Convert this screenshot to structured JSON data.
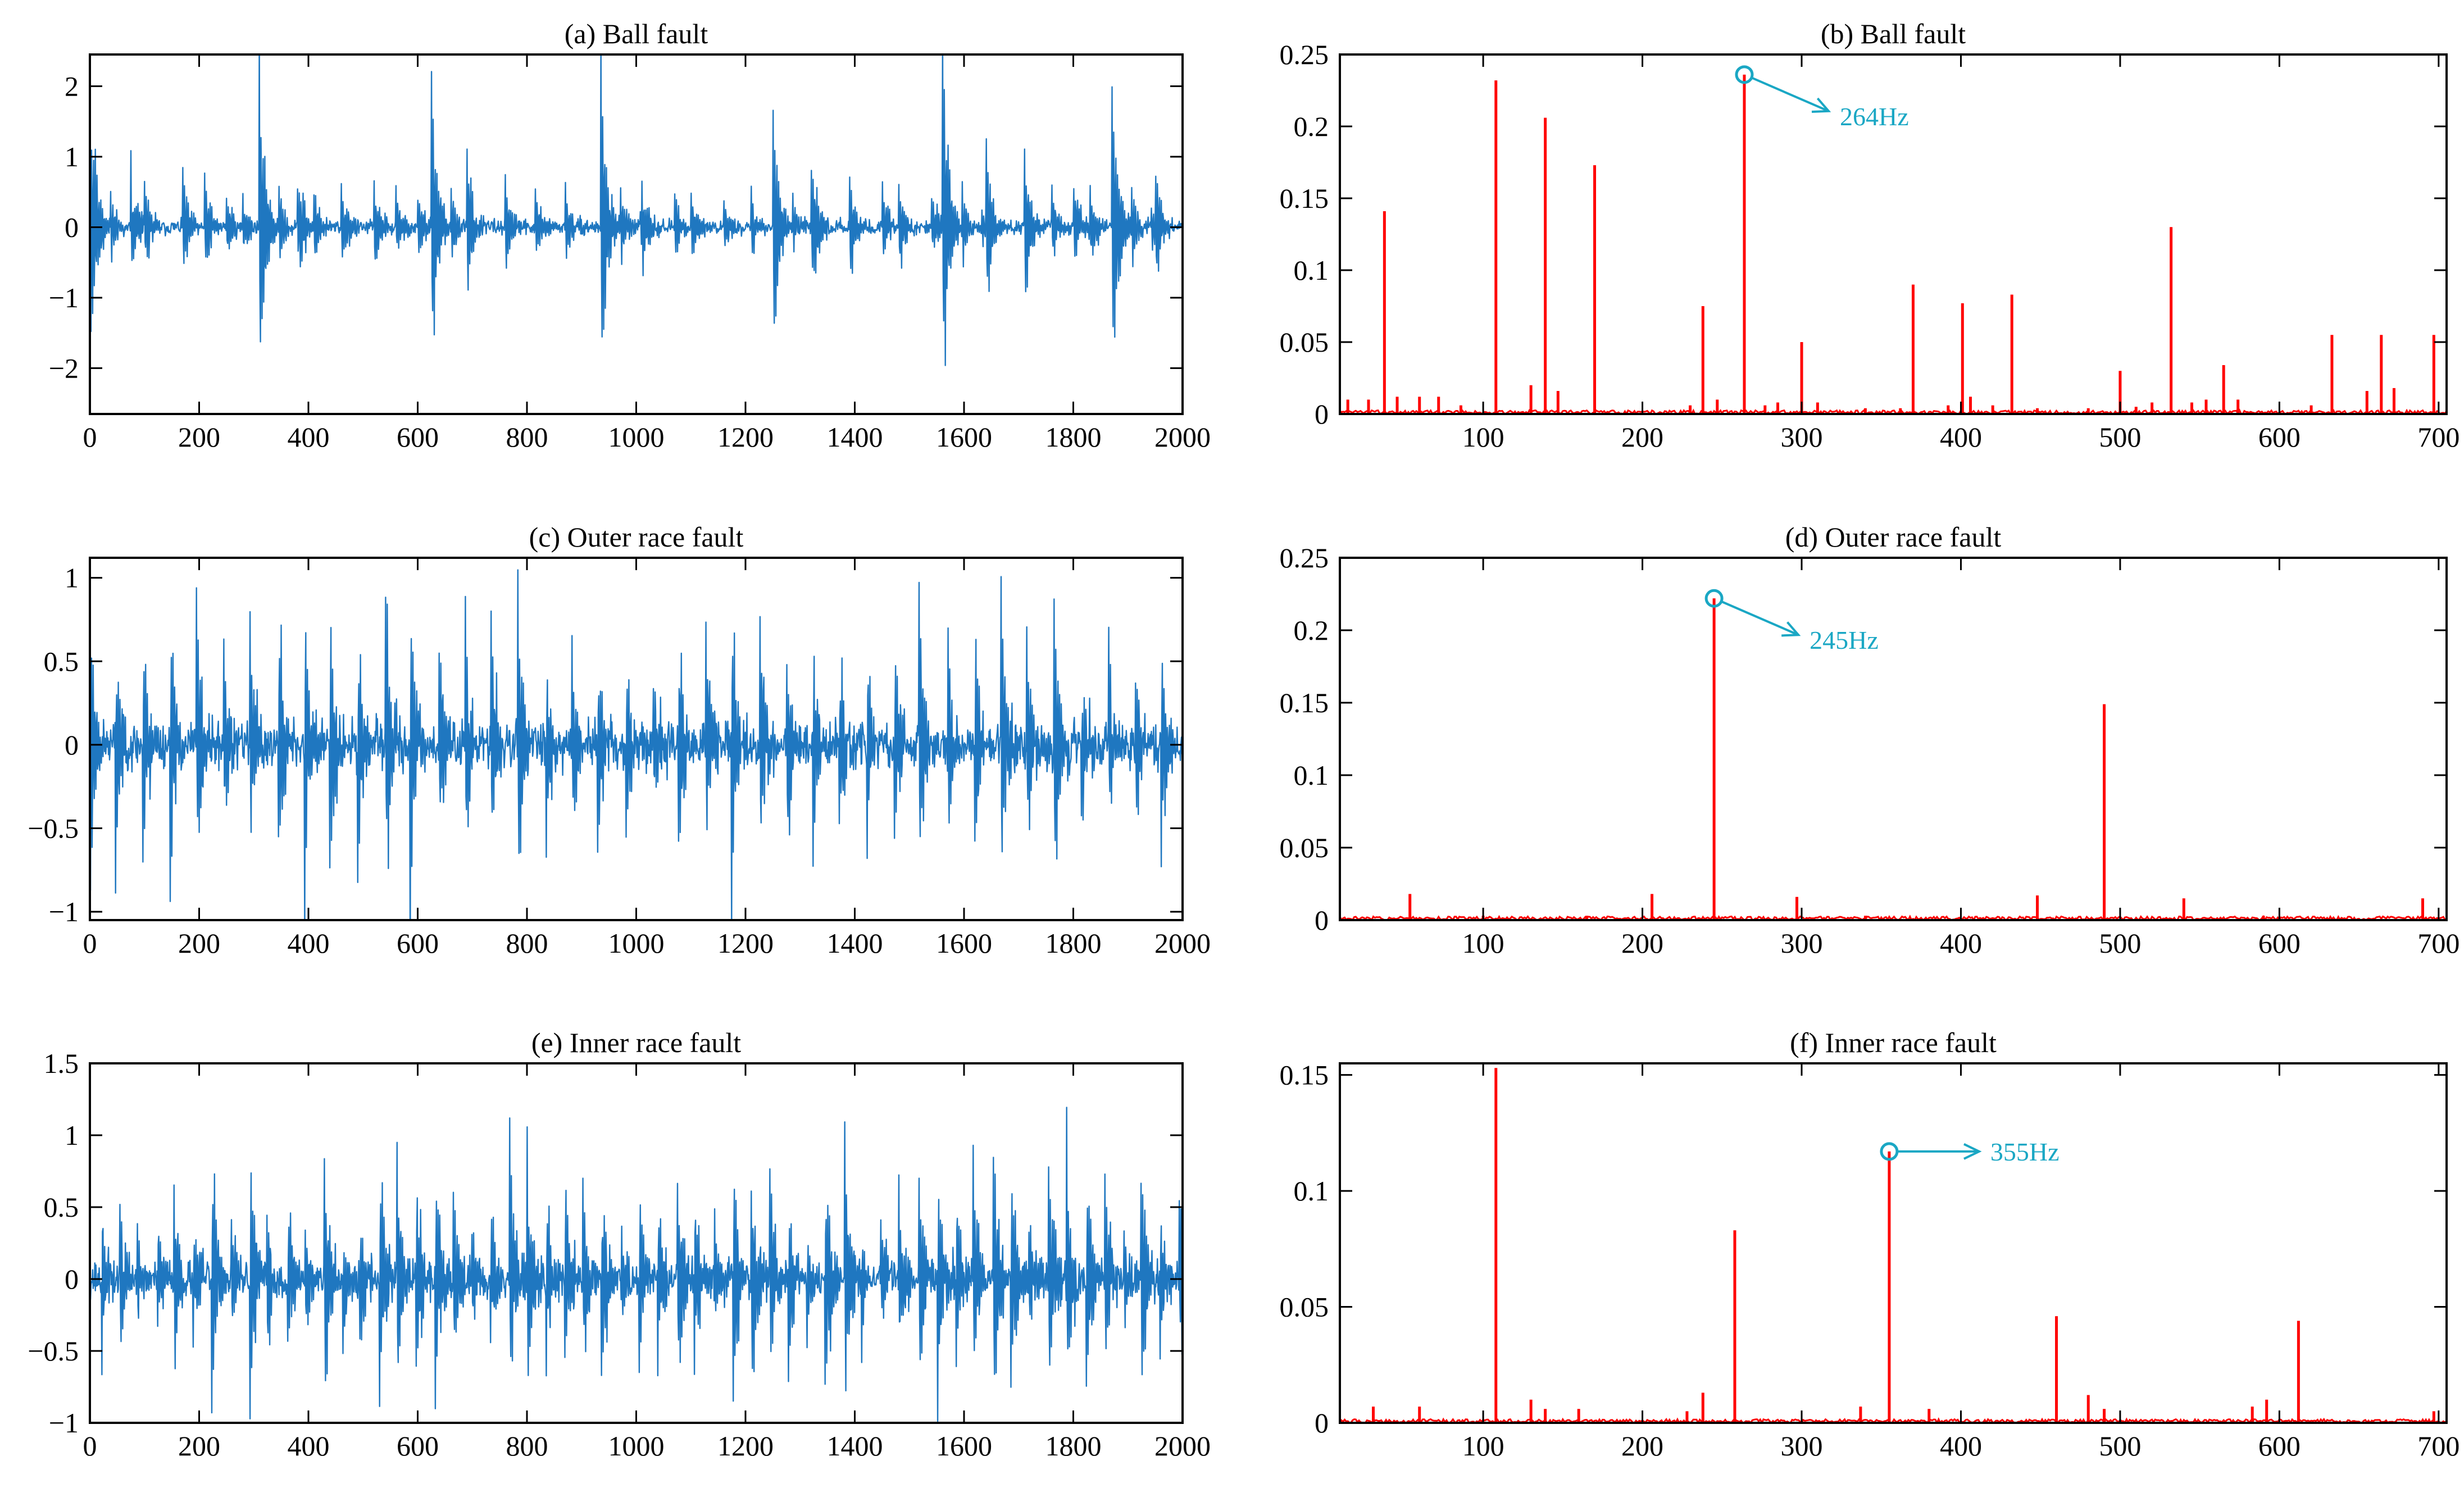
{
  "figure": {
    "colors": {
      "time": "#1f77c0",
      "spectrum": "#ff0000",
      "annotation": "#1aa7c4",
      "axes": "#000000"
    }
  },
  "chart_data": [
    {
      "id": "a",
      "type": "line",
      "title": "(a) Ball fault",
      "xlabel": "",
      "ylabel": "",
      "xlim": [
        0,
        2000
      ],
      "ylim": [
        -2.65,
        2.45
      ],
      "xticks": [
        0,
        200,
        400,
        600,
        800,
        1000,
        1200,
        1400,
        1600,
        1800,
        2000
      ],
      "xtick_labels": [
        "0",
        "200",
        "400",
        "600",
        "800",
        "1000",
        "1200",
        "1400",
        "1600",
        "1800",
        "2000"
      ],
      "yticks": [
        -2,
        -1,
        0,
        1,
        2
      ],
      "ytick_labels": [
        "−2",
        "−1",
        "0",
        "1",
        "2"
      ],
      "signal": {
        "samples": 2000,
        "noise": 0.07,
        "decay": 11,
        "seed": 11,
        "impulses": [
          {
            "x": 0,
            "amp": 2.3,
            "period": 38
          },
          {
            "x": 310,
            "amp": 2.3,
            "period": 36
          },
          {
            "x": 625,
            "amp": 2.15,
            "period": 36
          },
          {
            "x": 935,
            "amp": 2.3,
            "period": 36
          },
          {
            "x": 1250,
            "amp": 1.75,
            "period": 36
          },
          {
            "x": 1560,
            "amp": 2.45,
            "period": 36
          },
          {
            "x": 1870,
            "amp": 2.45,
            "period": 36
          },
          {
            "x": 75,
            "amp": 0.85
          },
          {
            "x": 100,
            "amp": 0.75
          },
          {
            "x": 170,
            "amp": 0.8
          },
          {
            "x": 210,
            "amp": 0.7
          },
          {
            "x": 250,
            "amp": 0.45
          },
          {
            "x": 280,
            "amp": 0.45
          },
          {
            "x": 380,
            "amp": 0.85
          },
          {
            "x": 410,
            "amp": 0.55
          },
          {
            "x": 460,
            "amp": 0.65
          },
          {
            "x": 520,
            "amp": 0.65
          },
          {
            "x": 560,
            "amp": 0.45
          },
          {
            "x": 600,
            "amp": 0.5
          },
          {
            "x": 690,
            "amp": 1.05
          },
          {
            "x": 760,
            "amp": 0.6
          },
          {
            "x": 815,
            "amp": 0.5
          },
          {
            "x": 870,
            "amp": 0.5
          },
          {
            "x": 1010,
            "amp": 0.75
          },
          {
            "x": 1070,
            "amp": 0.5
          },
          {
            "x": 1100,
            "amp": 0.6
          },
          {
            "x": 1160,
            "amp": 0.5
          },
          {
            "x": 1210,
            "amp": 0.45
          },
          {
            "x": 1320,
            "amp": 1.05
          },
          {
            "x": 1390,
            "amp": 0.75
          },
          {
            "x": 1450,
            "amp": 0.55
          },
          {
            "x": 1480,
            "amp": 0.65
          },
          {
            "x": 1540,
            "amp": 0.5
          },
          {
            "x": 1640,
            "amp": 1.05
          },
          {
            "x": 1710,
            "amp": 1.05
          },
          {
            "x": 1760,
            "amp": 0.55
          },
          {
            "x": 1800,
            "amp": 0.65
          },
          {
            "x": 1830,
            "amp": 0.5
          },
          {
            "x": 1950,
            "amp": 0.85
          }
        ]
      }
    },
    {
      "id": "b",
      "type": "line",
      "title": "(b) Ball fault",
      "xlabel": "",
      "ylabel": "",
      "xlim": [
        10,
        705
      ],
      "ylim": [
        0,
        0.25
      ],
      "xticks": [
        100,
        200,
        300,
        400,
        500,
        600,
        700
      ],
      "xtick_labels": [
        "100",
        "200",
        "300",
        "400",
        "500",
        "600",
        "700"
      ],
      "yticks": [
        0,
        0.05,
        0.1,
        0.15,
        0.2,
        0.25
      ],
      "ytick_labels": [
        "0",
        "0.05",
        "0.1",
        "0.15",
        "0.2",
        "0.25"
      ],
      "peaks": {
        "freq": [
          15,
          28,
          38,
          46,
          60,
          72,
          86,
          108,
          130,
          139,
          147,
          170,
          230,
          238,
          247,
          264,
          277,
          285,
          300,
          310,
          340,
          362,
          370,
          392,
          401,
          406,
          420,
          432,
          448,
          480,
          500,
          510,
          520,
          532,
          545,
          554,
          565,
          574,
          620,
          633,
          655,
          664,
          672,
          697
        ],
        "amp": [
          0.01,
          0.01,
          0.141,
          0.012,
          0.012,
          0.012,
          0.006,
          0.232,
          0.02,
          0.206,
          0.016,
          0.173,
          0.006,
          0.075,
          0.01,
          0.236,
          0.006,
          0.008,
          0.05,
          0.008,
          0.004,
          0.004,
          0.09,
          0.006,
          0.077,
          0.012,
          0.006,
          0.083,
          0.004,
          0.004,
          0.03,
          0.005,
          0.008,
          0.13,
          0.008,
          0.01,
          0.034,
          0.01,
          0.006,
          0.055,
          0.016,
          0.055,
          0.018,
          0.055
        ]
      },
      "annotation": {
        "text": "264Hz",
        "x": 264,
        "y": 0.236
      }
    },
    {
      "id": "c",
      "type": "line",
      "title": "(c) Outer race fault",
      "xlabel": "",
      "ylabel": "",
      "xlim": [
        0,
        2000
      ],
      "ylim": [
        -1.05,
        1.12
      ],
      "xticks": [
        0,
        200,
        400,
        600,
        800,
        1000,
        1200,
        1400,
        1600,
        1800,
        2000
      ],
      "xtick_labels": [
        "0",
        "200",
        "400",
        "600",
        "800",
        "1000",
        "1200",
        "1400",
        "1600",
        "1800",
        "2000"
      ],
      "yticks": [
        -1,
        -0.5,
        0,
        0.5,
        1
      ],
      "ytick_labels": [
        "−1",
        "−0.5",
        "0",
        "0.5",
        "1"
      ],
      "signal": {
        "samples": 2000,
        "noise": 0.1,
        "decay": 9,
        "seed": 23,
        "periodic": {
          "start": 0,
          "period": 49,
          "amp_min": 0.55,
          "amp_max": 1.05
        }
      }
    },
    {
      "id": "d",
      "type": "line",
      "title": "(d) Outer race fault",
      "xlabel": "",
      "ylabel": "",
      "xlim": [
        10,
        705
      ],
      "ylim": [
        0,
        0.25
      ],
      "xticks": [
        100,
        200,
        300,
        400,
        500,
        600,
        700
      ],
      "xtick_labels": [
        "100",
        "200",
        "300",
        "400",
        "500",
        "600",
        "700"
      ],
      "yticks": [
        0,
        0.05,
        0.1,
        0.15,
        0.2,
        0.25
      ],
      "ytick_labels": [
        "0",
        "0.05",
        "0.1",
        "0.15",
        "0.2",
        "0.25"
      ],
      "peaks": {
        "freq": [
          54,
          100,
          165,
          206,
          245,
          297,
          340,
          448,
          490,
          540,
          590,
          690
        ],
        "amp": [
          0.018,
          0.003,
          0.003,
          0.018,
          0.222,
          0.016,
          0.003,
          0.017,
          0.149,
          0.015,
          0.003,
          0.015
        ]
      },
      "annotation": {
        "text": "245Hz",
        "x": 245,
        "y": 0.222
      }
    },
    {
      "id": "e",
      "type": "line",
      "title": "(e) Inner race fault",
      "xlabel": "",
      "ylabel": "",
      "xlim": [
        0,
        2000
      ],
      "ylim": [
        -1,
        1.5
      ],
      "xticks": [
        0,
        200,
        400,
        600,
        800,
        1000,
        1200,
        1400,
        1600,
        1800,
        2000
      ],
      "xtick_labels": [
        "0",
        "200",
        "400",
        "600",
        "800",
        "1000",
        "1200",
        "1400",
        "1600",
        "1800",
        "2000"
      ],
      "yticks": [
        -1,
        -0.5,
        0,
        0.5,
        1,
        1.5
      ],
      "ytick_labels": [
        "−1",
        "−0.5",
        "0",
        "0.5",
        "1",
        "1.5"
      ],
      "signal": {
        "samples": 2000,
        "noise": 0.09,
        "decay": 10,
        "seed": 37,
        "periodic": {
          "start": 20,
          "period": 34,
          "amp_min": 0.35,
          "amp_max": 0.95
        }
      }
    },
    {
      "id": "f",
      "type": "line",
      "title": "(f) Inner race fault",
      "xlabel": "",
      "ylabel": "",
      "xlim": [
        10,
        705
      ],
      "ylim": [
        0,
        0.155
      ],
      "xticks": [
        100,
        200,
        300,
        400,
        500,
        600,
        700
      ],
      "xtick_labels": [
        "100",
        "200",
        "300",
        "400",
        "500",
        "600",
        "700"
      ],
      "yticks": [
        0,
        0.05,
        0.1,
        0.15
      ],
      "ytick_labels": [
        "0",
        "0.05",
        "0.1",
        "0.15"
      ],
      "peaks": {
        "freq": [
          31,
          60,
          108,
          130,
          139,
          160,
          228,
          238,
          258,
          337,
          355,
          380,
          460,
          480,
          490,
          583,
          592,
          612,
          697
        ],
        "amp": [
          0.007,
          0.007,
          0.153,
          0.01,
          0.006,
          0.006,
          0.005,
          0.013,
          0.083,
          0.007,
          0.117,
          0.006,
          0.046,
          0.012,
          0.006,
          0.007,
          0.01,
          0.044,
          0.005
        ]
      },
      "annotation": {
        "text": "355Hz",
        "x": 355,
        "y": 0.117
      }
    }
  ]
}
